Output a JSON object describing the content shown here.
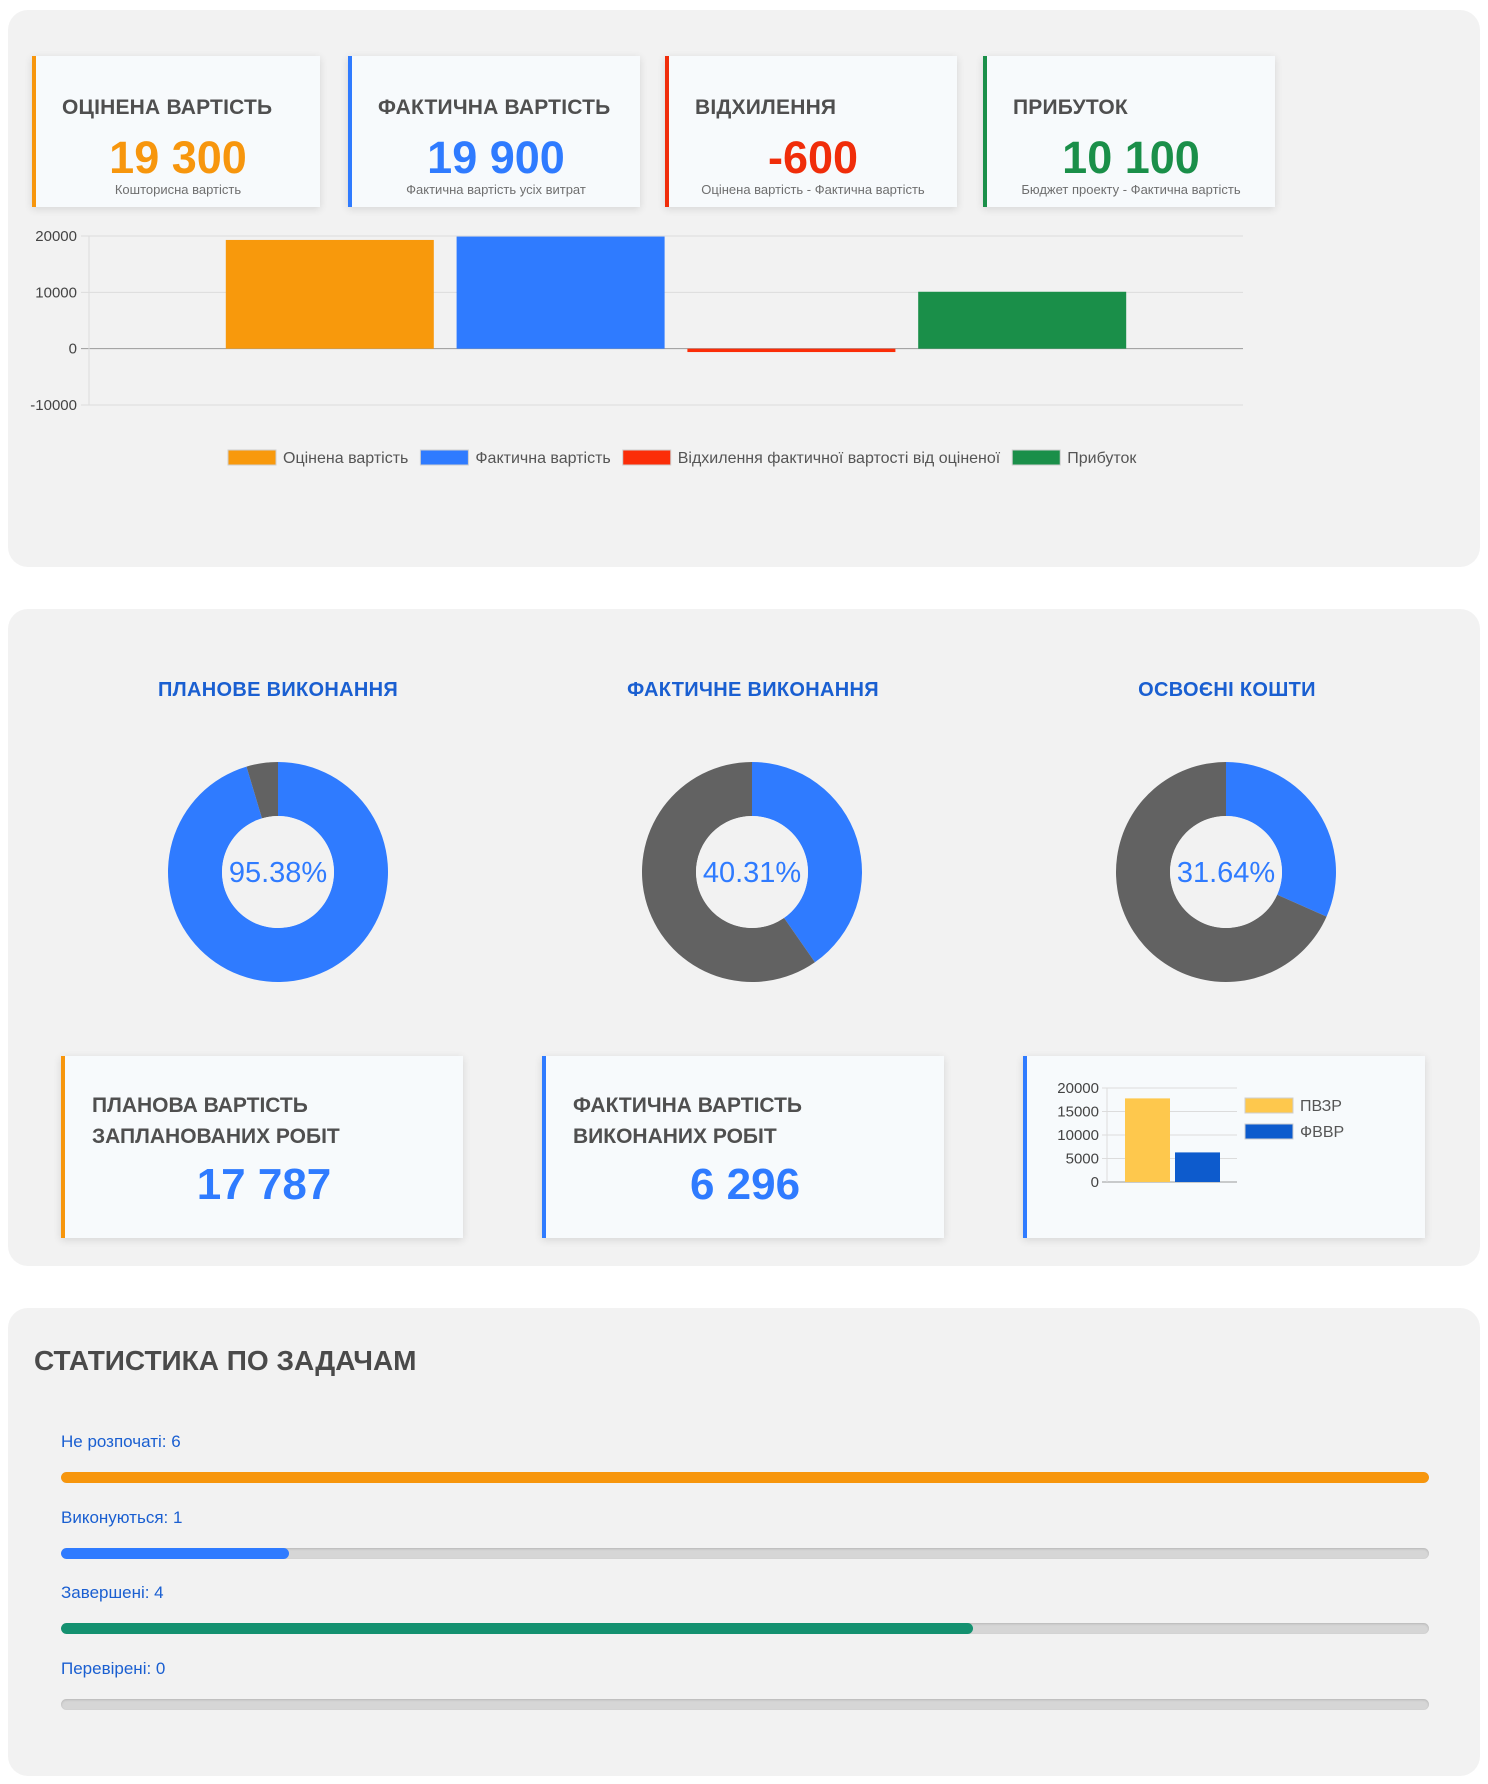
{
  "kpis": [
    {
      "title": "ОЦІНЕНА ВАРТІСТЬ",
      "value": "19 300",
      "subtitle": "Кошторисна вартість",
      "color": "#f7960d"
    },
    {
      "title": "ФАКТИЧНА ВАРТІСТЬ",
      "value": "19 900",
      "subtitle": "Фактична вартість усіх витрат",
      "color": "#2f7bff"
    },
    {
      "title": "ВІДХИЛЕННЯ",
      "value": "-600",
      "subtitle": "Оцінена вартість - Фактична вартість",
      "color": "#f02d0a"
    },
    {
      "title": "ПРИБУТОК",
      "value": "10 100",
      "subtitle": "Бюджет проекту - Фактична вартість",
      "color": "#1a8f49"
    }
  ],
  "chart_data": [
    {
      "type": "bar",
      "categories": [
        ""
      ],
      "series": [
        {
          "name": "Оцінена вартість",
          "values": [
            19300
          ],
          "color": "#f8990c"
        },
        {
          "name": "Фактична вартість",
          "values": [
            19900
          ],
          "color": "#2f7bff"
        },
        {
          "name": "Відхилення фактичної вартості від оціненої",
          "values": [
            -600
          ],
          "color": "#fb2d08"
        },
        {
          "name": "Прибуток",
          "values": [
            10100
          ],
          "color": "#1a8f49"
        }
      ],
      "yticks": [
        "20000",
        "10000",
        "0",
        "-10000"
      ],
      "ylim": [
        -10000,
        20000
      ],
      "grid": true,
      "legend": "bottom"
    },
    {
      "type": "pie",
      "title": "ПЛАНОВЕ ВИКОНАННЯ",
      "center_label": "95.38%",
      "values": [
        95.38,
        4.62
      ],
      "colors": [
        "#2f7bff",
        "#626262"
      ]
    },
    {
      "type": "pie",
      "title": "ФАКТИЧНЕ ВИКОНАННЯ",
      "center_label": "40.31%",
      "values": [
        40.31,
        59.69
      ],
      "colors": [
        "#2f7bff",
        "#626262"
      ]
    },
    {
      "type": "pie",
      "title": "ОСВОЄНІ КОШТИ",
      "center_label": "31.64%",
      "values": [
        31.64,
        68.36
      ],
      "colors": [
        "#2f7bff",
        "#626262"
      ]
    },
    {
      "type": "bar",
      "categories": [
        ""
      ],
      "series": [
        {
          "name": "ПВЗР",
          "values": [
            17787
          ],
          "color": "#fec84d"
        },
        {
          "name": "ФВВР",
          "values": [
            6296
          ],
          "color": "#0d5bcd"
        }
      ],
      "yticks": [
        "20000",
        "15000",
        "10000",
        "5000",
        "0"
      ],
      "ylim": [
        0,
        20000
      ],
      "grid": true,
      "legend": "right"
    }
  ],
  "earned_value": {
    "planned": {
      "title": "ПЛАНОВА ВАРТІСТЬ ЗАПЛАНОВАНИХ РОБІТ",
      "value": "17 787",
      "color": "#f7960d"
    },
    "actual": {
      "title": "ФАКТИЧНА ВАРТІСТЬ ВИКОНАНИХ РОБІТ",
      "value": "6 296",
      "color": "#2f7bff"
    },
    "chart_card_color": "#2f7bff"
  },
  "task_stats": {
    "title": "СТАТИСТИКА ПО ЗАДАЧАМ",
    "items": [
      {
        "label": "Не розпочаті: 6",
        "fraction": 1.0,
        "color": "#f7960d"
      },
      {
        "label": "Виконуються: 1",
        "fraction": 0.167,
        "color": "#2f7bff"
      },
      {
        "label": "Завершені: 4",
        "fraction": 0.667,
        "color": "#149170"
      },
      {
        "label": "Перевірені: 0",
        "fraction": 0.0,
        "color": "#2f7bff"
      }
    ]
  }
}
